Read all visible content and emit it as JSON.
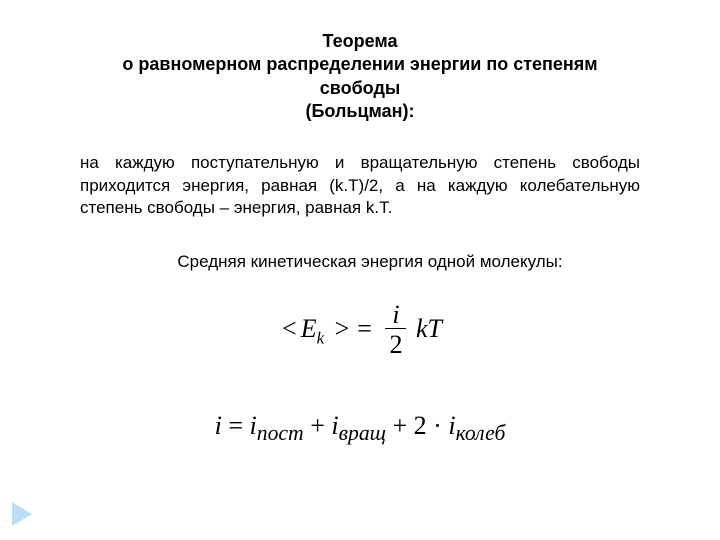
{
  "title": {
    "line1": "Теорема",
    "line2": "о равномерном распределении энергии по степеням свободы",
    "line3": "(Больцман):"
  },
  "body": "на каждую поступательную и вращательную степень свободы приходится энергия, равная (k.T)/2, а на каждую колебательную степень свободы – энергия, равная k.T.",
  "sub_heading": "Средняя кинетическая энергия одной молекулы:",
  "formula1": {
    "lhs_open": "<",
    "lhs_sym": "E",
    "lhs_sub": "k",
    "lhs_close": ">",
    "eq": "=",
    "frac_num": "i",
    "frac_den": "2",
    "rhs": "kT"
  },
  "formula2": {
    "i": "i",
    "eq": "=",
    "i1": "i",
    "sub1": "пост",
    "plus1": "+",
    "i2": "i",
    "sub2": "вращ",
    "plus2": "+",
    "two": "2",
    "dot": "·",
    "i3": "i",
    "sub3": "колеб"
  },
  "colors": {
    "text": "#000000",
    "background": "#ffffff",
    "arrow": "#b8dff5"
  }
}
